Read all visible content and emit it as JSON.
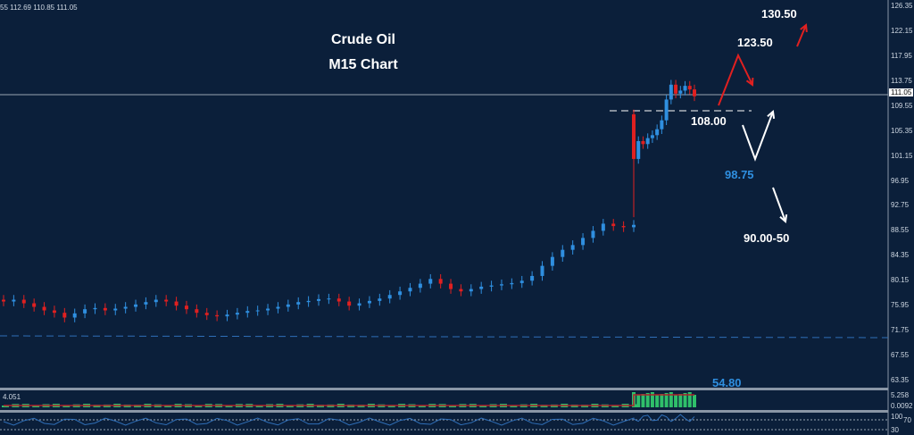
{
  "header": {
    "ohlc": "55 112.69 110.85 111.05"
  },
  "titles": {
    "line1": "Crude Oil",
    "line2": "M15 Chart"
  },
  "annotations": {
    "t1": "130.50",
    "t2": "123.50",
    "s1": "108.00",
    "s2": "98.75",
    "t3": "90.00-50",
    "s3": "54.80"
  },
  "colors": {
    "bg": "#0b1f3a",
    "bull": "#2f8fe0",
    "bear": "#e02020",
    "arrow_red": "#e02020",
    "arrow_white": "#ffffff",
    "blue_label": "#2f8fe0"
  },
  "indicators": {
    "volume_label": "4.051",
    "volume_top": "5.258",
    "volume_bottom": "0.0092",
    "rsi_top": "100",
    "rsi_70": "70",
    "rsi_30": "30"
  },
  "chart_data": {
    "type": "candlestick",
    "title": "Crude Oil M15 Chart",
    "current_price": "111.05",
    "y_ticks": [
      "126.35",
      "122.15",
      "117.95",
      "113.75",
      "109.55",
      "105.35",
      "101.15",
      "96.95",
      "92.75",
      "88.55",
      "84.35",
      "80.15",
      "75.95",
      "71.75",
      "67.55",
      "63.35"
    ],
    "ylim": [
      63.35,
      126.35
    ],
    "closes": [
      76.5,
      76.8,
      76.2,
      75.6,
      75.0,
      74.6,
      73.8,
      74.5,
      75.2,
      75.4,
      75.0,
      75.3,
      75.6,
      76.0,
      76.4,
      76.8,
      76.5,
      75.8,
      75.2,
      74.6,
      74.2,
      74.0,
      74.3,
      74.6,
      74.9,
      75.0,
      75.3,
      75.6,
      76.0,
      76.4,
      76.6,
      76.9,
      77.0,
      76.5,
      75.8,
      76.2,
      76.6,
      77.0,
      77.6,
      78.2,
      78.8,
      79.5,
      80.3,
      79.5,
      78.6,
      78.2,
      78.6,
      79.0,
      79.2,
      79.4,
      79.6,
      80.0,
      80.8,
      82.5,
      84.0,
      85.2,
      86.0,
      87.2,
      88.4,
      89.6,
      89.2,
      89.0,
      89.4,
      100.5,
      103.5,
      103.0,
      104.0,
      104.5,
      105.5,
      107.0,
      110.5,
      113.0,
      111.5,
      112.0,
      112.8,
      112.2,
      111.05
    ],
    "support_levels": [
      108.0,
      98.75,
      90.0,
      54.8
    ],
    "targets": [
      123.5,
      130.5
    ]
  }
}
